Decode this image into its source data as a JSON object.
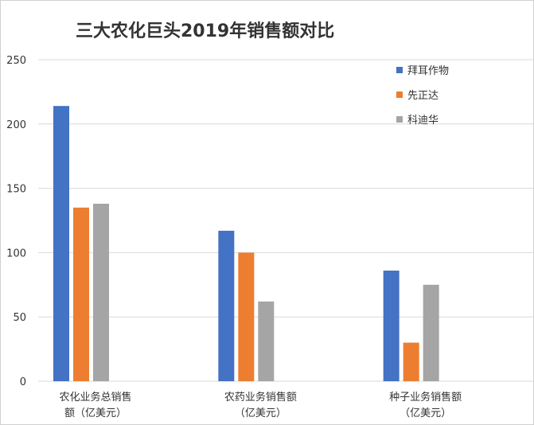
{
  "chart_data": {
    "type": "bar",
    "title": "三大农化巨头2019年销售额对比",
    "categories": [
      [
        "农化业务总销售",
        "额（亿美元）"
      ],
      [
        "农药业务销售额",
        "（亿美元）"
      ],
      [
        "种子业务销售额",
        "（亿美元）"
      ]
    ],
    "series": [
      {
        "name": "拜耳作物",
        "color": "#4472C4",
        "values": [
          214,
          117,
          86
        ]
      },
      {
        "name": "先正达",
        "color": "#ED7D31",
        "values": [
          135,
          100,
          30
        ]
      },
      {
        "name": "科迪华",
        "color": "#A5A5A5",
        "values": [
          138,
          62,
          75
        ]
      }
    ],
    "ylim": [
      0,
      250
    ],
    "yticks": [
      0,
      50,
      100,
      150,
      200,
      250
    ],
    "grid": true,
    "legend_position": "top-right"
  }
}
